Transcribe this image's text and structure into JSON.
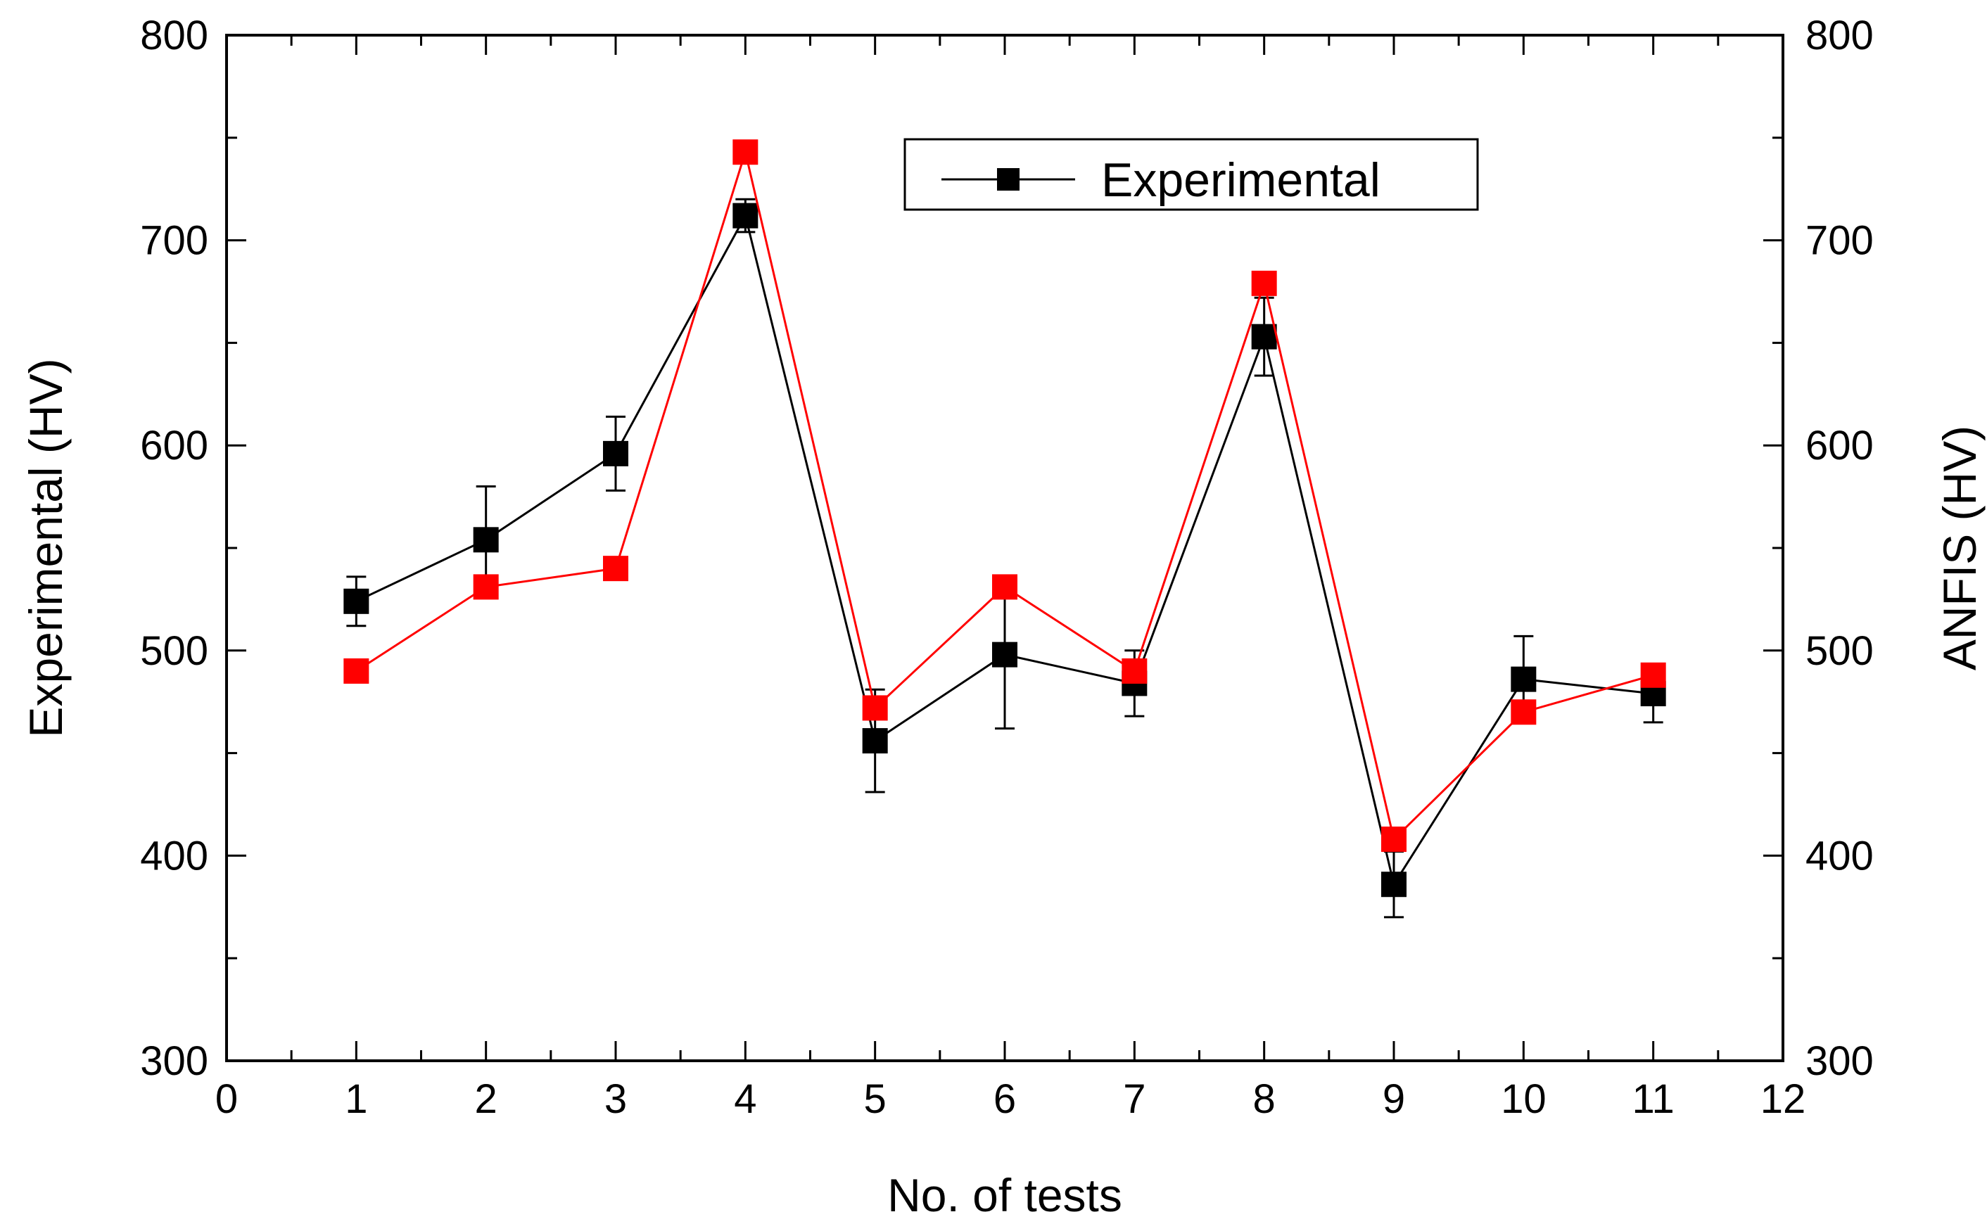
{
  "chart_data": {
    "type": "line",
    "title": "",
    "xlabel": "No. of tests",
    "ylabel": "Experimental (HV)",
    "ylabel_right": "ANFIS (HV)",
    "xlim": [
      0,
      12
    ],
    "ylim": [
      300,
      800
    ],
    "ylim_right": [
      300,
      800
    ],
    "x_ticks": [
      "0",
      "1",
      "2",
      "3",
      "4",
      "5",
      "6",
      "7",
      "8",
      "9",
      "10",
      "11",
      "12"
    ],
    "y_ticks": [
      "300",
      "400",
      "500",
      "600",
      "700",
      "800"
    ],
    "y_ticks_right": [
      "300",
      "400",
      "500",
      "600",
      "700",
      "800"
    ],
    "grid": false,
    "legend": {
      "position": "top-right",
      "entries": [
        "Experimental"
      ]
    },
    "x": [
      1,
      2,
      3,
      4,
      5,
      6,
      7,
      8,
      9,
      10,
      11
    ],
    "series": [
      {
        "name": "Experimental",
        "color": "#000000",
        "axis": "left",
        "values": [
          524,
          554,
          596,
          712,
          456,
          498,
          484,
          653,
          386,
          486,
          479
        ],
        "error": [
          12,
          26,
          18,
          8,
          25,
          36,
          16,
          19,
          16,
          21,
          14
        ]
      },
      {
        "name": "ANFIS",
        "color": "#ff0000",
        "axis": "right",
        "values": [
          490,
          531,
          540,
          743,
          472,
          531,
          490,
          679,
          408,
          470,
          488
        ]
      }
    ]
  }
}
